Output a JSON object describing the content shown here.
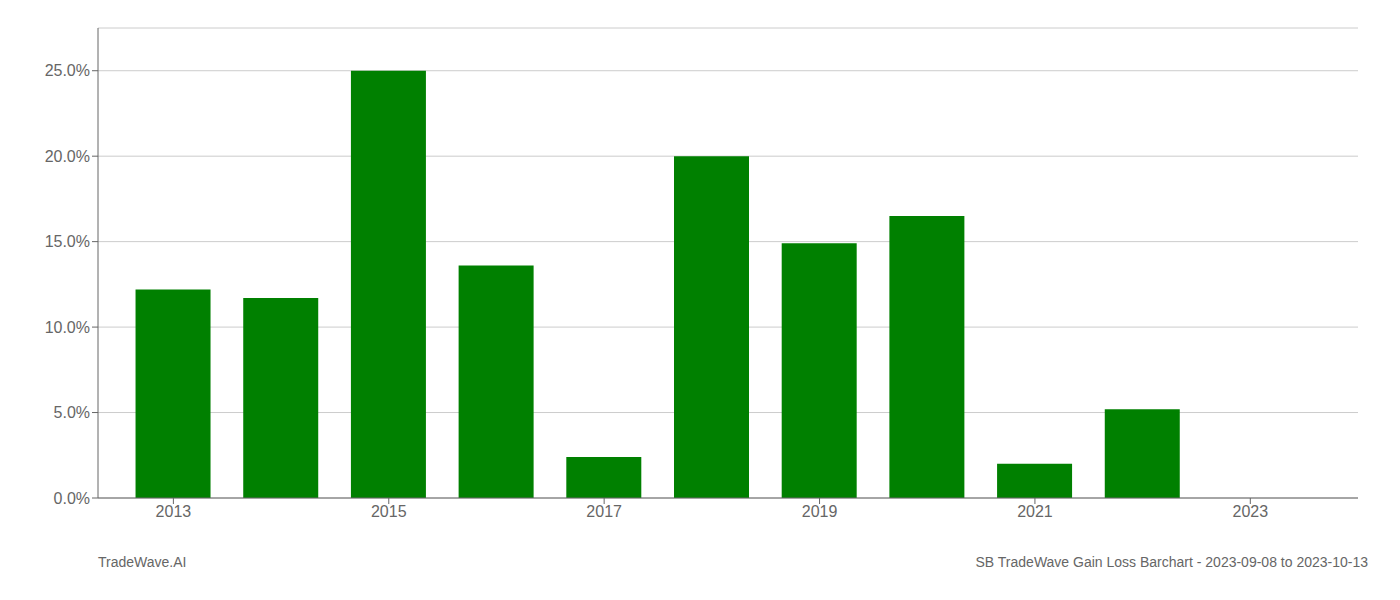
{
  "chart_data": {
    "type": "bar",
    "x": [
      2013,
      2014,
      2015,
      2016,
      2017,
      2018,
      2019,
      2020,
      2021,
      2022,
      2023
    ],
    "values": [
      0.122,
      0.117,
      0.25,
      0.136,
      0.024,
      0.2,
      0.149,
      0.165,
      0.02,
      0.052,
      0.0
    ],
    "color": "#008000",
    "xlim": [
      2012.3,
      2024.0
    ],
    "xticks": [
      2013,
      2015,
      2017,
      2019,
      2021,
      2023
    ],
    "ylim": [
      0,
      0.275
    ],
    "yticks": [
      {
        "value": 0.0,
        "label": "0.0%"
      },
      {
        "value": 0.05,
        "label": "5.0%"
      },
      {
        "value": 0.1,
        "label": "10.0%"
      },
      {
        "value": 0.15,
        "label": "15.0%"
      },
      {
        "value": 0.2,
        "label": "20.0%"
      },
      {
        "value": 0.25,
        "label": "25.0%"
      }
    ],
    "grid": true,
    "annotations": [
      "TradeWave.AI",
      "SB TradeWave Gain Loss Barchart - 2023-09-08 to 2023-10-13"
    ]
  }
}
